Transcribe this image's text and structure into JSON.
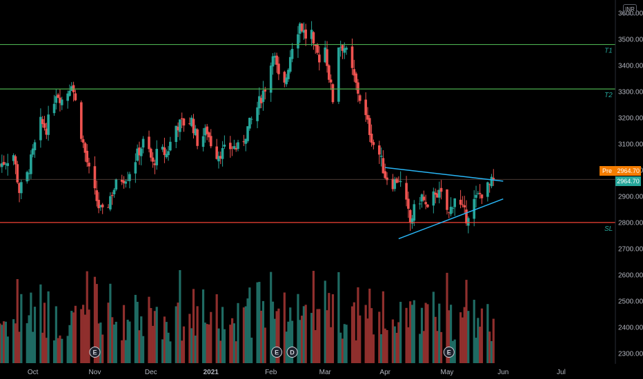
{
  "header": {
    "currency": "INR"
  },
  "price_badges": {
    "pre_label": "Pre",
    "pre_value": "2964.70",
    "last_value": "2964.70"
  },
  "colors": {
    "background": "#000000",
    "up": "#26a69a",
    "down": "#ef5350",
    "vol_up": "#1f6b63",
    "vol_down": "#8f2f2d",
    "target_line": "#4caf50",
    "stoploss_line": "#f44336",
    "trendline": "#29b6f6",
    "axis_text": "#b2b5be",
    "pre_badge": "#f57c00"
  },
  "chart_data": {
    "type": "candlestick",
    "ylim": [
      2260,
      3650
    ],
    "y_ticks": [
      2300,
      2400,
      2500,
      2600,
      2700,
      2800,
      2900,
      3000,
      3100,
      3200,
      3300,
      3400,
      3500,
      3600
    ],
    "y_tick_labels": [
      "2300.00",
      "2400.00",
      "2500.00",
      "2600.00",
      "2700.00",
      "2800.00",
      "2900.00",
      "3000.00",
      "3100.00",
      "3200.00",
      "3300.00",
      "3400.00",
      "3500.00",
      "3600.00"
    ],
    "x_start": "2020-09-14",
    "x_end": "2021-07-29",
    "x_ticks": [
      {
        "label": "Oct",
        "date": "2020-10-01"
      },
      {
        "label": "Nov",
        "date": "2020-11-02"
      },
      {
        "label": "Dec",
        "date": "2020-12-01"
      },
      {
        "label": "2021",
        "date": "2021-01-01"
      },
      {
        "label": "Feb",
        "date": "2021-02-01"
      },
      {
        "label": "Mar",
        "date": "2021-03-01"
      },
      {
        "label": "Apr",
        "date": "2021-04-01"
      },
      {
        "label": "May",
        "date": "2021-05-03"
      },
      {
        "label": "Jun",
        "date": "2021-06-01"
      },
      {
        "label": "Jul",
        "date": "2021-07-01"
      }
    ],
    "close_path": [
      [
        "2020-09-14",
        3020
      ],
      [
        "2020-09-21",
        3060
      ],
      [
        "2020-09-24",
        2920
      ],
      [
        "2020-09-28",
        2980
      ],
      [
        "2020-10-05",
        3180
      ],
      [
        "2020-10-08",
        3160
      ],
      [
        "2020-10-13",
        3300
      ],
      [
        "2020-10-17",
        3260
      ],
      [
        "2020-10-21",
        3340
      ],
      [
        "2020-10-24",
        3220
      ],
      [
        "2020-10-27",
        3100
      ],
      [
        "2020-10-31",
        2960
      ],
      [
        "2020-11-04",
        2860
      ],
      [
        "2020-11-07",
        2820
      ],
      [
        "2020-11-10",
        2900
      ],
      [
        "2020-11-14",
        2960
      ],
      [
        "2020-11-19",
        2980
      ],
      [
        "2020-11-24",
        3060
      ],
      [
        "2020-11-28",
        3120
      ],
      [
        "2020-12-02",
        3020
      ],
      [
        "2020-12-05",
        3080
      ],
      [
        "2020-12-09",
        3060
      ],
      [
        "2020-12-14",
        3170
      ],
      [
        "2020-12-18",
        3180
      ],
      [
        "2020-12-22",
        3190
      ],
      [
        "2020-12-25",
        3110
      ],
      [
        "2020-12-30",
        3150
      ],
      [
        "2021-01-03",
        3060
      ],
      [
        "2021-01-07",
        3070
      ],
      [
        "2021-01-12",
        3090
      ],
      [
        "2021-01-16",
        3080
      ],
      [
        "2021-01-20",
        3160
      ],
      [
        "2021-01-24",
        3220
      ],
      [
        "2021-01-28",
        3300
      ],
      [
        "2021-01-31",
        3350
      ],
      [
        "2021-02-02",
        3460
      ],
      [
        "2021-02-05",
        3350
      ],
      [
        "2021-02-08",
        3320
      ],
      [
        "2021-02-12",
        3480
      ],
      [
        "2021-02-16",
        3560
      ],
      [
        "2021-02-19",
        3510
      ],
      [
        "2021-02-21",
        3590
      ],
      [
        "2021-02-23",
        3460
      ],
      [
        "2021-02-26",
        3430
      ],
      [
        "2021-03-01",
        3470
      ],
      [
        "2021-03-03",
        3360
      ],
      [
        "2021-03-05",
        3270
      ],
      [
        "2021-03-08",
        3480
      ],
      [
        "2021-03-11",
        3470
      ],
      [
        "2021-03-14",
        3400
      ],
      [
        "2021-03-18",
        3300
      ],
      [
        "2021-03-22",
        3200
      ],
      [
        "2021-03-26",
        3100
      ],
      [
        "2021-03-29",
        3060
      ],
      [
        "2021-04-01",
        2980
      ],
      [
        "2021-04-05",
        2950
      ],
      [
        "2021-04-08",
        2970
      ],
      [
        "2021-04-11",
        2900
      ],
      [
        "2021-04-14",
        2800
      ],
      [
        "2021-04-17",
        2870
      ],
      [
        "2021-04-20",
        2900
      ],
      [
        "2021-04-23",
        2840
      ],
      [
        "2021-04-27",
        2920
      ],
      [
        "2021-04-30",
        2900
      ],
      [
        "2021-05-04",
        2830
      ],
      [
        "2021-05-07",
        2900
      ],
      [
        "2021-05-10",
        2860
      ],
      [
        "2021-05-13",
        2820
      ],
      [
        "2021-05-16",
        2870
      ],
      [
        "2021-05-19",
        2900
      ],
      [
        "2021-05-22",
        2920
      ],
      [
        "2021-05-25",
        2940
      ],
      [
        "2021-05-27",
        2964.7
      ]
    ],
    "horizontal_lines": [
      {
        "label": "T1",
        "price": 3480
      },
      {
        "label": "T2",
        "price": 3310
      },
      {
        "label": "SL",
        "price": 2800
      }
    ],
    "last_price": 2964.7,
    "trendlines": [
      {
        "start": [
          "2021-04-01",
          3010
        ],
        "end": [
          "2021-06-01",
          2958
        ]
      },
      {
        "start": [
          "2021-04-08",
          2738
        ],
        "end": [
          "2021-06-01",
          2890
        ]
      }
    ],
    "event_markers": [
      {
        "label": "E",
        "date": "2020-11-02"
      },
      {
        "label": "E",
        "date": "2021-02-04"
      },
      {
        "label": "D",
        "date": "2021-02-12"
      },
      {
        "label": "E",
        "date": "2021-05-04"
      }
    ]
  }
}
